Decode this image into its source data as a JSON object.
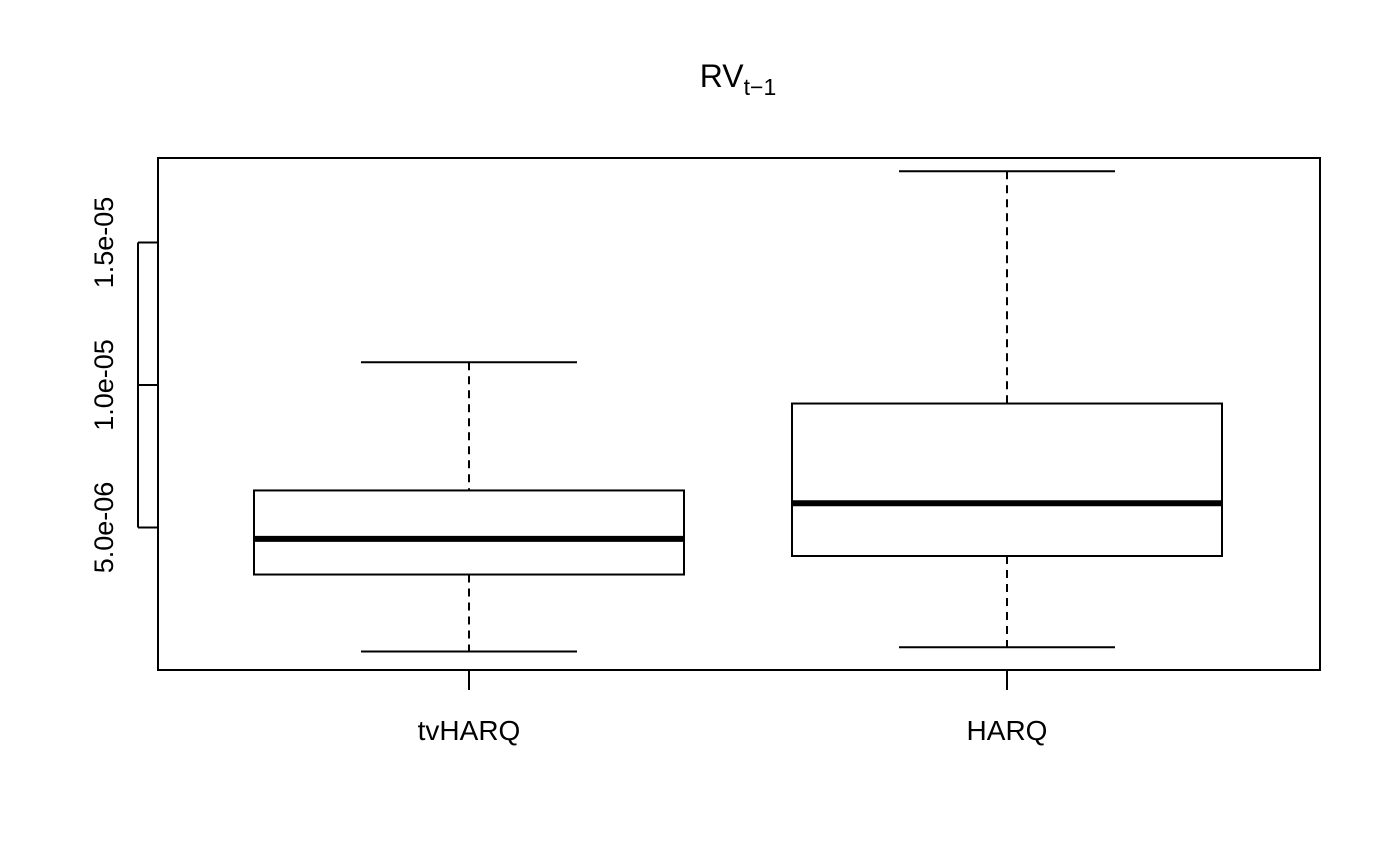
{
  "chart_data": {
    "type": "boxplot",
    "title_main": "RV",
    "title_subscript": "t−1",
    "xlabel": "",
    "ylabel": "",
    "ylim": [
      0.0,
      1.8e-05
    ],
    "y_ticks": [
      {
        "value": 5e-06,
        "label": "5.0e-06"
      },
      {
        "value": 1e-05,
        "label": "1.0e-05"
      },
      {
        "value": 1.5e-05,
        "label": "1.5e-05"
      }
    ],
    "categories": [
      "tvHARQ",
      "HARQ"
    ],
    "boxes": [
      {
        "name": "tvHARQ",
        "whisker_low": 6.5e-07,
        "q1": 3.35e-06,
        "median": 4.6e-06,
        "q3": 6.3e-06,
        "whisker_high": 1.08e-05
      },
      {
        "name": "HARQ",
        "whisker_low": 8e-07,
        "q1": 4e-06,
        "median": 5.85e-06,
        "q3": 9.35e-06,
        "whisker_high": 1.75e-05
      }
    ],
    "grid": false,
    "legend": "none"
  }
}
